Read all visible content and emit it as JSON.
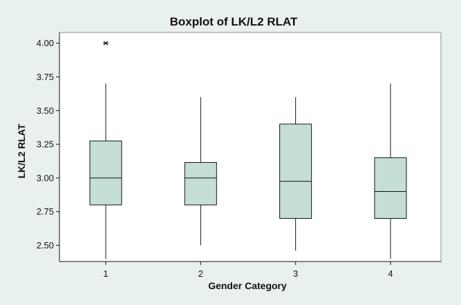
{
  "chart_data": {
    "type": "box",
    "title": "Boxplot of LK/L2 RLAT",
    "xlabel": "Gender Category",
    "ylabel": "LK/L2 RLAT",
    "categories": [
      "1",
      "2",
      "3",
      "4"
    ],
    "y_ticks": [
      "2.50",
      "2.75",
      "3.00",
      "3.25",
      "3.50",
      "3.75",
      "4.00"
    ],
    "ylim": [
      2.38,
      4.08
    ],
    "grid": false,
    "legend": "none",
    "box_color": "#c6dfd6",
    "background": "#e9f1ec",
    "plot_background": "#ffffff",
    "boxes": [
      {
        "category": "1",
        "whisker_low": 2.4,
        "q1": 2.8,
        "median": 3.0,
        "q3": 3.275,
        "whisker_high": 3.7,
        "outliers": [
          4.0
        ]
      },
      {
        "category": "2",
        "whisker_low": 2.5,
        "q1": 2.8,
        "median": 3.0,
        "q3": 3.115,
        "whisker_high": 3.6,
        "outliers": []
      },
      {
        "category": "3",
        "whisker_low": 2.46,
        "q1": 2.7,
        "median": 2.975,
        "q3": 3.4,
        "whisker_high": 3.6,
        "outliers": []
      },
      {
        "category": "4",
        "whisker_low": 2.4,
        "q1": 2.7,
        "median": 2.9,
        "q3": 3.15,
        "whisker_high": 3.7,
        "outliers": []
      }
    ]
  }
}
